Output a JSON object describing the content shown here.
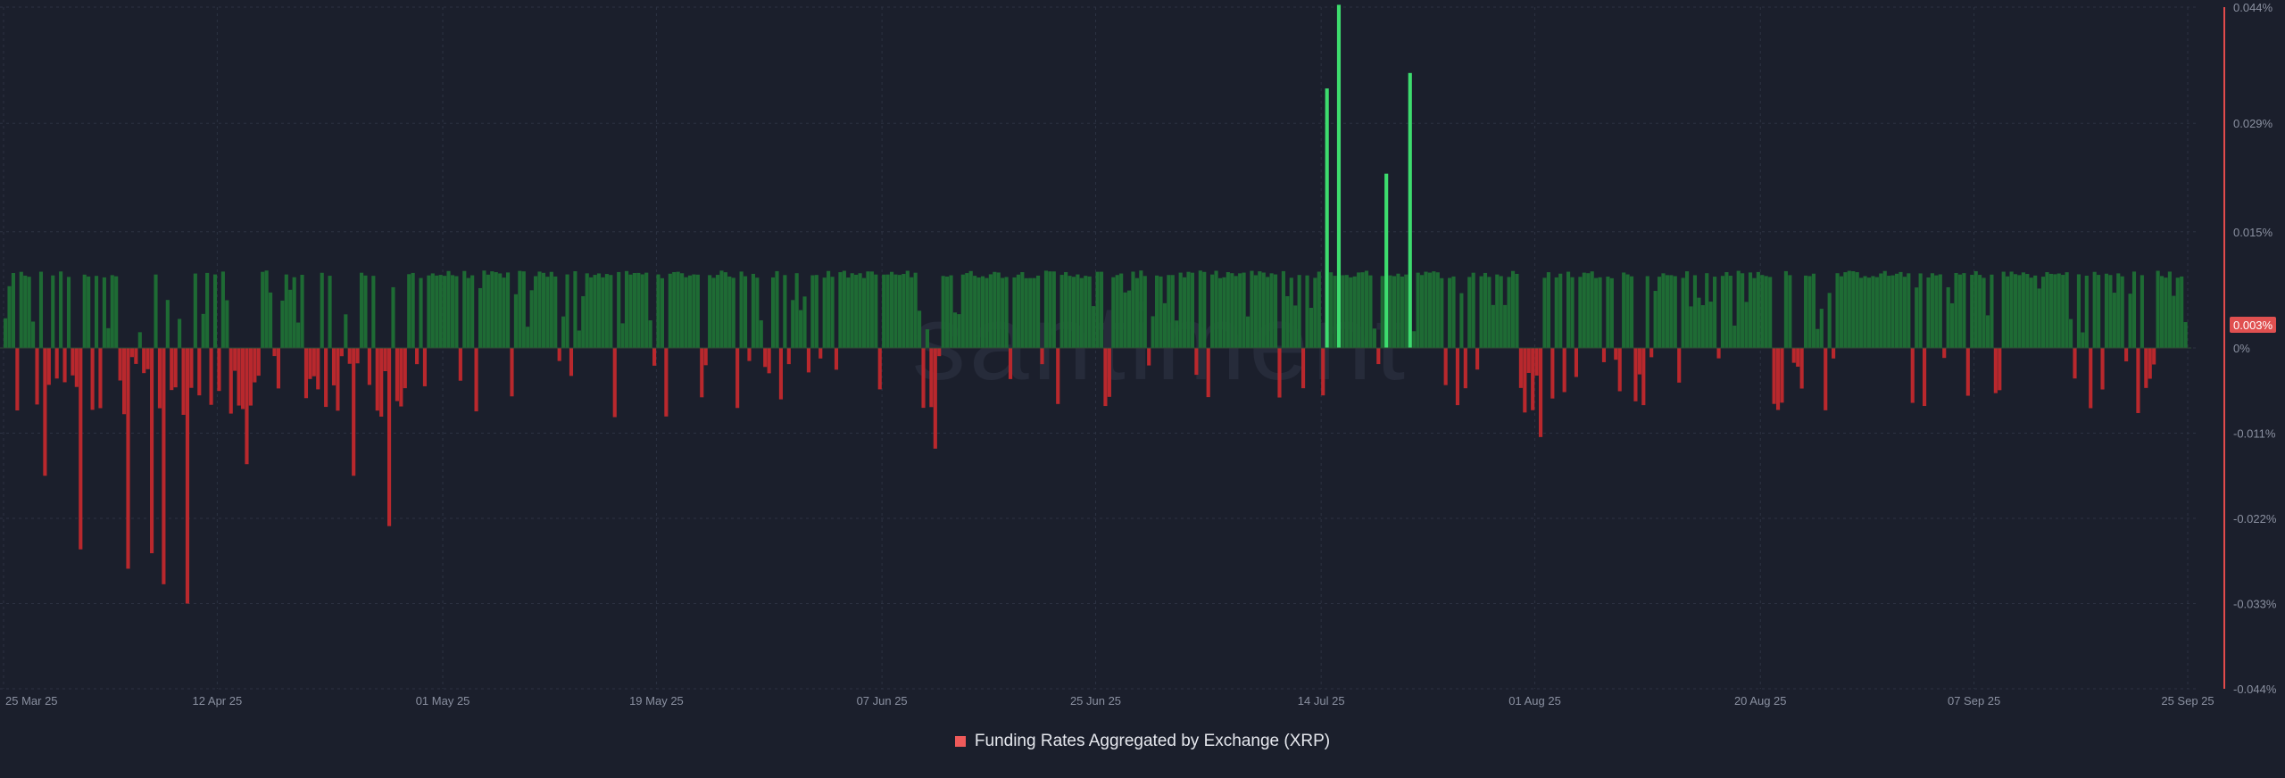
{
  "chart_data": {
    "type": "bar",
    "title": "",
    "xlabel": "",
    "ylabel": "",
    "x_tick_labels": [
      "25 Mar 25",
      "12 Apr 25",
      "01 May 25",
      "19 May 25",
      "07 Jun 25",
      "25 Jun 25",
      "14 Jul 25",
      "01 Aug 25",
      "20 Aug 25",
      "07 Sep 25",
      "25 Sep 25"
    ],
    "y_tick_labels": [
      "0.044%",
      "0.029%",
      "0.015%",
      "0%",
      "-0.011%",
      "-0.022%",
      "-0.033%",
      "-0.044%"
    ],
    "y_tick_values": [
      0.044,
      0.029,
      0.015,
      0,
      -0.011,
      -0.022,
      -0.033,
      -0.044
    ],
    "ylim": [
      -0.044,
      0.044
    ],
    "y_unit": "%",
    "current_value_label": "0.003%",
    "grid": true,
    "watermark": "santiment",
    "series": [
      {
        "name": "Funding Rates Aggregated by Exchange (XRP)",
        "color": "#ef5a5a",
        "positive_color": "#1e6b34",
        "negative_color": "#b9282d",
        "spike_color": "#3ddc6e",
        "start_date": "25 Mar 25",
        "end_date": "25 Sep 25",
        "notable_points": [
          {
            "date": "28 Mar 25",
            "value": -0.0165
          },
          {
            "date": "31 Mar 25",
            "value": -0.026
          },
          {
            "date": "04 Apr 25",
            "value": -0.0285
          },
          {
            "date": "06 Apr 25",
            "value": -0.0265
          },
          {
            "date": "07 Apr 25",
            "value": -0.0305
          },
          {
            "date": "09 Apr 25",
            "value": -0.033
          },
          {
            "date": "14 Apr 25",
            "value": -0.015
          },
          {
            "date": "23 Apr 25",
            "value": -0.0165
          },
          {
            "date": "26 Apr 25",
            "value": -0.023
          },
          {
            "date": "11 Jun 25",
            "value": -0.013
          },
          {
            "date": "14 Jul 25",
            "value": 0.0335
          },
          {
            "date": "15 Jul 25",
            "value": 0.0443
          },
          {
            "date": "19 Jul 25",
            "value": 0.0225
          },
          {
            "date": "21 Jul 25",
            "value": 0.0355
          },
          {
            "date": "01 Aug 25",
            "value": -0.0115
          },
          {
            "date": "21 Aug 25",
            "value": -0.008
          },
          {
            "date": "25 Sep 25",
            "value": 0.003
          }
        ],
        "typical_positive_value": 0.01,
        "typical_negative_range": [
          -0.001,
          -0.009
        ]
      }
    ]
  },
  "legend": {
    "label": "Funding Rates Aggregated by Exchange (XRP)",
    "swatch_color": "#ef5a5a"
  },
  "colors": {
    "background": "#1b1f2c",
    "grid": "#2c3242",
    "axis_line": "#e24b4b",
    "tick_text": "#8a90a0",
    "badge": "#e05050"
  }
}
